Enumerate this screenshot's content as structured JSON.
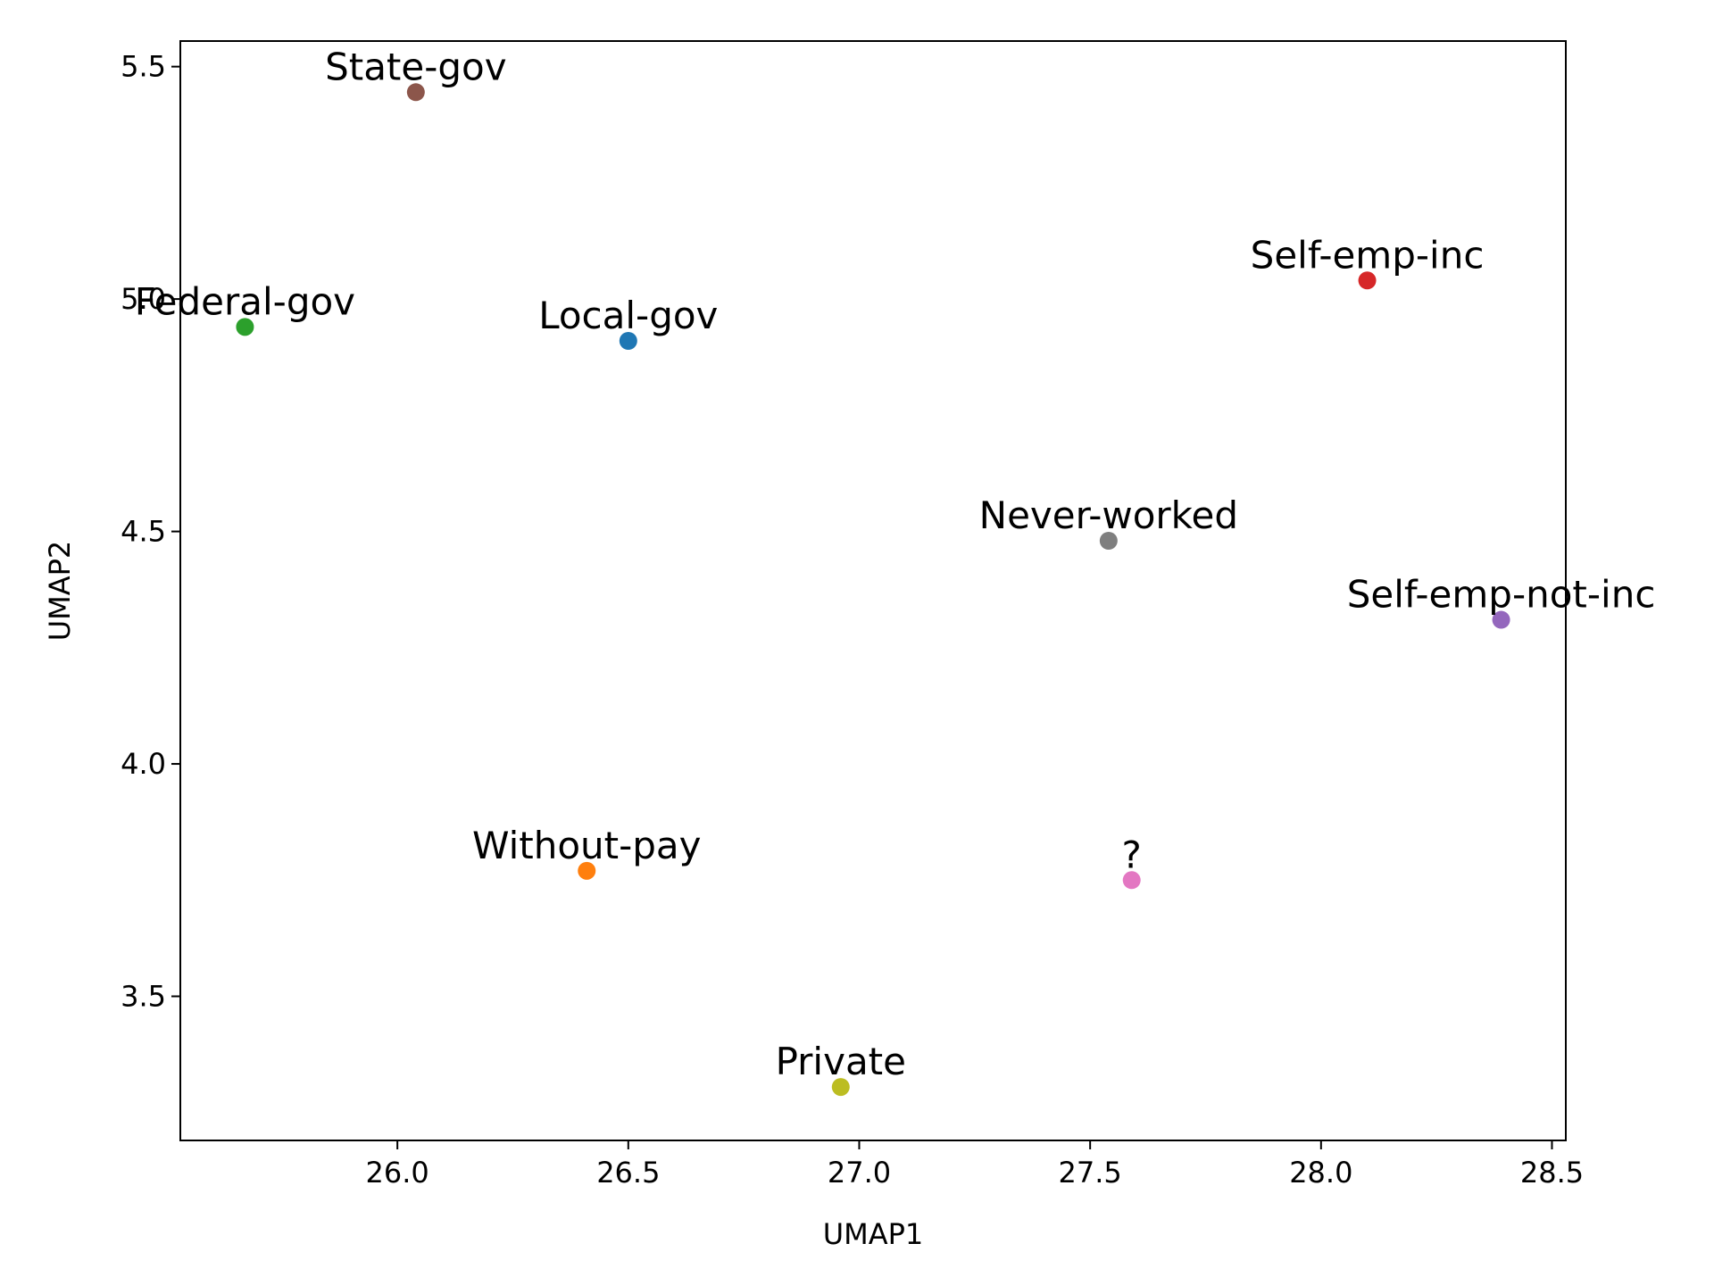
{
  "chart_data": {
    "type": "scatter",
    "title": "",
    "xlabel": "UMAP1",
    "ylabel": "UMAP2",
    "xlim": [
      25.53,
      28.53
    ],
    "ylim": [
      3.19,
      5.555
    ],
    "xticks": [
      26.0,
      26.5,
      27.0,
      27.5,
      28.0,
      28.5
    ],
    "yticks": [
      3.5,
      4.0,
      4.5,
      5.0,
      5.5
    ],
    "xtick_labels": [
      "26.0",
      "26.5",
      "27.0",
      "27.5",
      "28.0",
      "28.5"
    ],
    "ytick_labels": [
      "3.5",
      "4.0",
      "4.5",
      "5.0",
      "5.5"
    ],
    "grid": false,
    "legend": "none",
    "points": [
      {
        "label": "Local-gov",
        "x": 26.5,
        "y": 4.91,
        "color": "#1f77b4"
      },
      {
        "label": "Without-pay",
        "x": 26.41,
        "y": 3.77,
        "color": "#ff7f0e"
      },
      {
        "label": "Federal-gov",
        "x": 25.67,
        "y": 4.94,
        "color": "#2ca02c"
      },
      {
        "label": "Self-emp-inc",
        "x": 28.1,
        "y": 5.04,
        "color": "#d62728"
      },
      {
        "label": "Self-emp-not-inc",
        "x": 28.39,
        "y": 4.31,
        "color": "#9467bd"
      },
      {
        "label": "State-gov",
        "x": 26.04,
        "y": 5.445,
        "color": "#8c564b"
      },
      {
        "label": "?",
        "x": 27.59,
        "y": 3.75,
        "color": "#e377c2"
      },
      {
        "label": "Never-worked",
        "x": 27.54,
        "y": 4.48,
        "color": "#7f7f7f"
      },
      {
        "label": "Private",
        "x": 26.96,
        "y": 3.305,
        "color": "#bcbd22"
      }
    ]
  }
}
